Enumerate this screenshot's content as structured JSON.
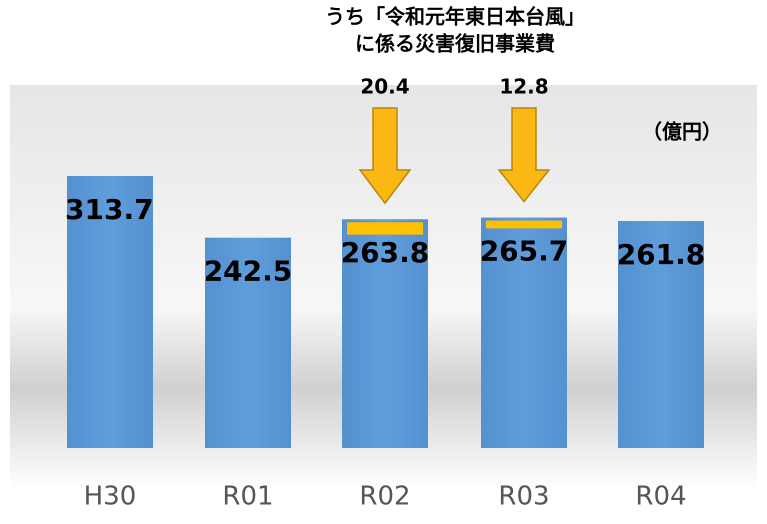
{
  "chart_data": {
    "type": "bar",
    "annotation": [
      "うち「令和元年東日本台風」",
      "に係る災害復旧事業費"
    ],
    "unit": "（億円）",
    "categories": [
      "H30",
      "R01",
      "R02",
      "R03",
      "R04"
    ],
    "values": [
      313.7,
      242.5,
      263.8,
      265.7,
      261.8
    ],
    "color": "#5b9bd5",
    "ylim": [
      0,
      350
    ],
    "overlay": {
      "color": "#ffc000",
      "values": [
        null,
        null,
        20.4,
        12.8,
        null
      ]
    }
  }
}
